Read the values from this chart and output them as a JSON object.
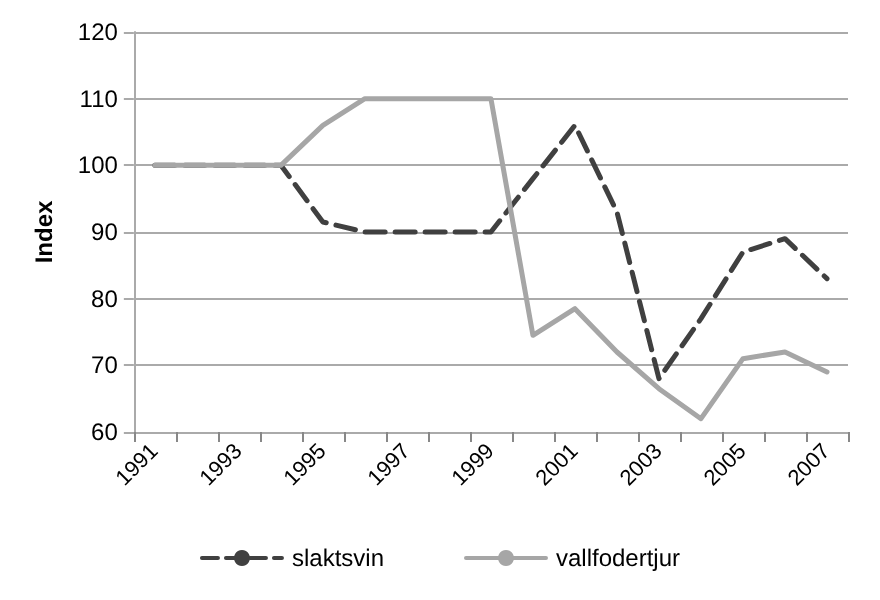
{
  "chart_data": {
    "type": "line",
    "ylabel": "Index",
    "categories": [
      "1991",
      null,
      "1993",
      null,
      "1995",
      null,
      "1997",
      null,
      "1999",
      null,
      "2001",
      null,
      "2003",
      null,
      "2005",
      null,
      "2007"
    ],
    "series": [
      {
        "name": "slaktsvin",
        "color": "#404040",
        "line_style": "dashed",
        "values": [
          100,
          100,
          100,
          100,
          91.5,
          90,
          90,
          90,
          90,
          98,
          106,
          93,
          68,
          77,
          87,
          89,
          83
        ]
      },
      {
        "name": "vallfodertjur",
        "color": "#a6a6a6",
        "line_style": "solid",
        "values": [
          100,
          100,
          100,
          100,
          106,
          110,
          110,
          110,
          110,
          74.5,
          78.5,
          72,
          66.5,
          62,
          71,
          72,
          69
        ]
      }
    ],
    "ylim": [
      60,
      120
    ],
    "yticks": [
      60,
      70,
      80,
      90,
      100,
      110,
      120
    ],
    "grid": "y",
    "legend": "bottom",
    "marker": "none"
  }
}
